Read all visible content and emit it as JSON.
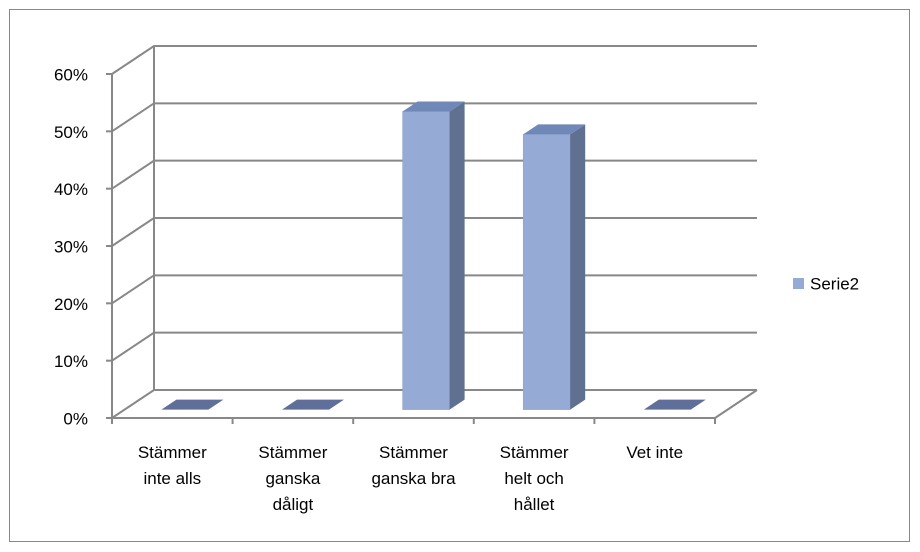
{
  "chart_data": {
    "type": "bar3d",
    "categories": [
      "Stämmer inte alls",
      "Stämmer ganska dåligt",
      "Stämmer ganska bra",
      "Stämmer helt och hållet",
      "Vet inte"
    ],
    "series": [
      {
        "name": "Serie2",
        "color": "#95abd6",
        "values": [
          0,
          0,
          52,
          48,
          0
        ]
      }
    ],
    "ylim": [
      0,
      60
    ],
    "yticks": [
      {
        "value": 0,
        "label": "0%"
      },
      {
        "value": 10,
        "label": "10%"
      },
      {
        "value": 20,
        "label": "20%"
      },
      {
        "value": 30,
        "label": "30%"
      },
      {
        "value": 40,
        "label": "40%"
      },
      {
        "value": 50,
        "label": "50%"
      },
      {
        "value": 60,
        "label": "60%"
      }
    ],
    "grid": true,
    "legend": "right"
  }
}
